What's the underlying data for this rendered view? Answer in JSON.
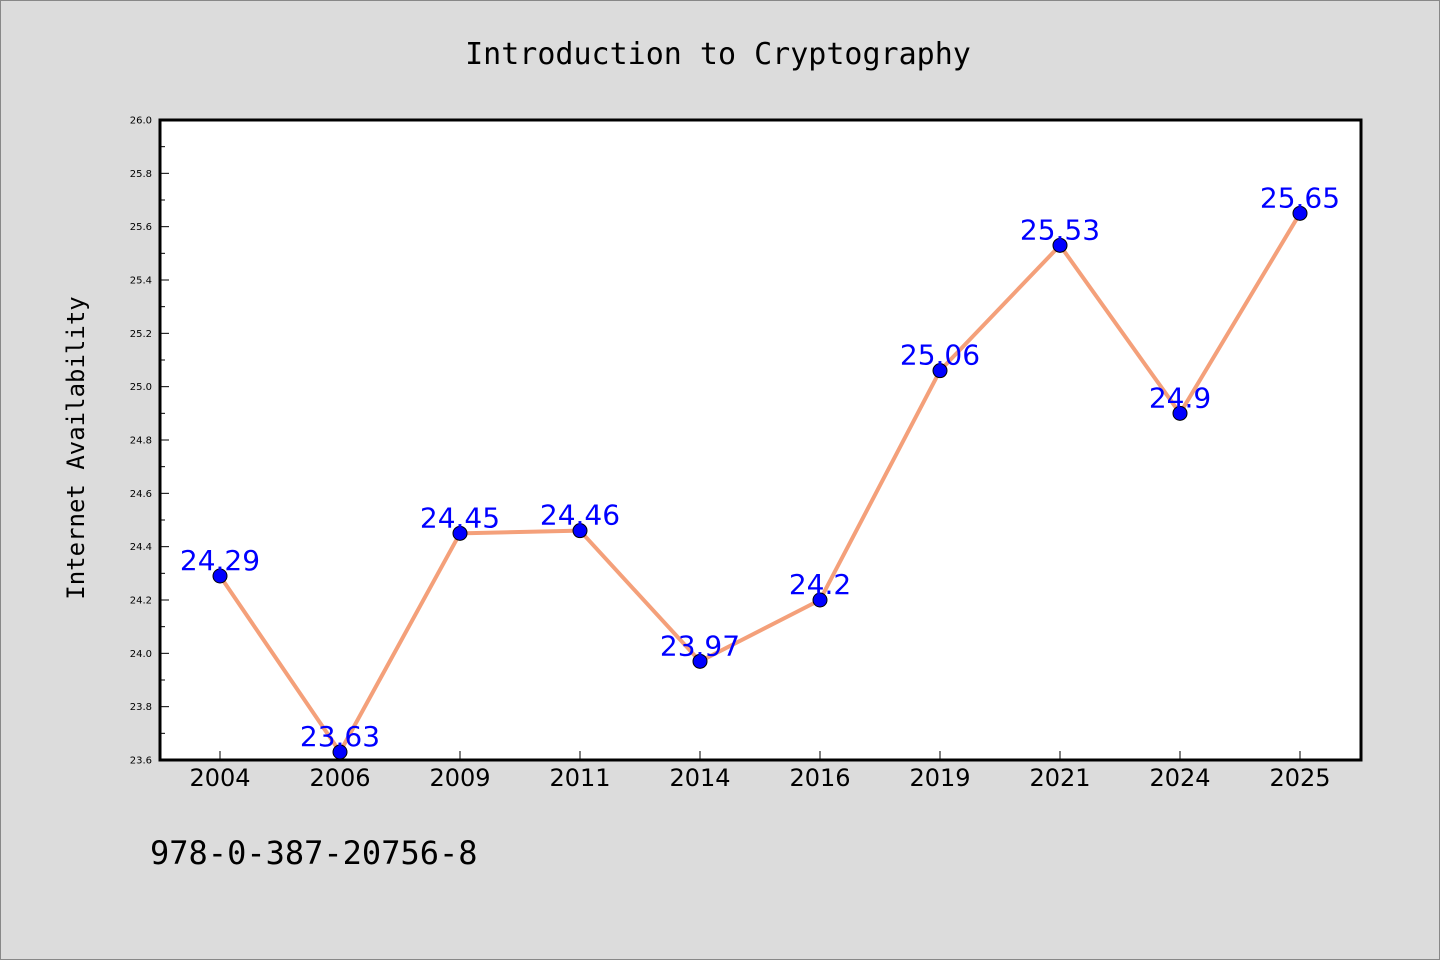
{
  "chart_data": {
    "type": "line",
    "title": "Introduction to Cryptography",
    "xlabel": "",
    "ylabel": "Internet Availability",
    "categories": [
      "2004",
      "2006",
      "2009",
      "2011",
      "2014",
      "2016",
      "2019",
      "2021",
      "2024",
      "2025"
    ],
    "series": [
      {
        "values": [
          24.29,
          23.63,
          24.45,
          24.46,
          23.97,
          24.2,
          25.06,
          25.53,
          24.9,
          25.65
        ],
        "labels": [
          "24.29",
          "23.63",
          "24.45",
          "24.46",
          "23.97",
          "24.2",
          "25.06",
          "25.53",
          "24.9",
          "25.65"
        ]
      }
    ],
    "ylim": [
      23.6,
      26.0
    ],
    "yticks": [
      "23.6",
      "23.8",
      "24.0",
      "24.2",
      "24.4",
      "24.6",
      "24.8",
      "25.0",
      "25.2",
      "25.4",
      "25.6",
      "25.8",
      "26.0"
    ],
    "grid": false,
    "legend": "none",
    "colors": {
      "line": "#f4a07a",
      "marker": "#0000ff",
      "marker_edge": "#000000",
      "data_label": "#0000ff",
      "background": "#dcdcdc",
      "plot_background": "#ffffff"
    }
  },
  "footer": {
    "isbn": "978-0-387-20756-8"
  }
}
